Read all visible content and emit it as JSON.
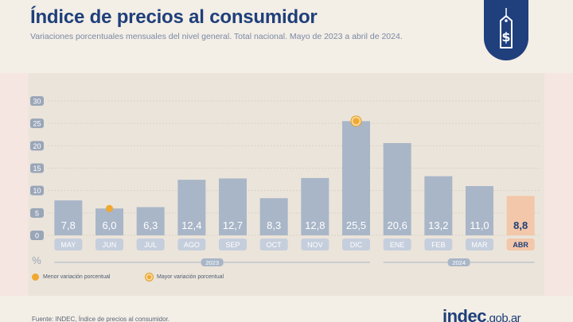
{
  "header": {
    "title": "Índice de precios al consumidor",
    "subtitle": "Variaciones porcentuales mensuales del nivel general. Total nacional. Mayo de 2023 a abril de 2024."
  },
  "colors": {
    "title": "#1e3f7a",
    "bar": "#a9b6c8",
    "bar_highlight": "#f3c7a9",
    "marker": "#f0a830",
    "panel": "#ebe4da",
    "month_pill": "#c5cedc"
  },
  "icons": {
    "badge": "price-tag-dollar-icon"
  },
  "chart_data": {
    "type": "bar",
    "categories": [
      "MAY",
      "JUN",
      "JUL",
      "AGO",
      "SEP",
      "OCT",
      "NOV",
      "DIC",
      "ENE",
      "FEB",
      "MAR",
      "ABR"
    ],
    "values": [
      7.8,
      6.0,
      6.3,
      12.4,
      12.7,
      8.3,
      12.8,
      25.5,
      20.6,
      13.2,
      11.0,
      8.8
    ],
    "value_labels": [
      "7,8",
      "6,0",
      "6,3",
      "12,4",
      "12,7",
      "8,3",
      "12,8",
      "25,5",
      "20,6",
      "13,2",
      "11,0",
      "8,8"
    ],
    "highlighted_category": "ABR",
    "y_ticks": [
      "0",
      "5",
      "10",
      "15",
      "20",
      "25",
      "30"
    ],
    "ylim": [
      0,
      30
    ],
    "y_unit": "%",
    "year_groups": [
      {
        "label": "2023",
        "categories": [
          "MAY",
          "JUN",
          "JUL",
          "AGO",
          "SEP",
          "OCT",
          "NOV",
          "DIC"
        ]
      },
      {
        "label": "2024",
        "categories": [
          "ENE",
          "FEB",
          "MAR",
          "ABR"
        ]
      }
    ],
    "markers": [
      {
        "category": "JUN",
        "kind": "min"
      },
      {
        "category": "DIC",
        "kind": "max"
      }
    ],
    "legend": [
      {
        "kind": "min",
        "label": "Menor variación porcentual"
      },
      {
        "kind": "max",
        "label": "Mayor variación porcentual"
      }
    ],
    "grid": true
  },
  "footer": {
    "source": "Fuente: INDEC, Índice de precios al consumidor.",
    "logo_main": "indec",
    "logo_domain": ".gob.ar"
  }
}
